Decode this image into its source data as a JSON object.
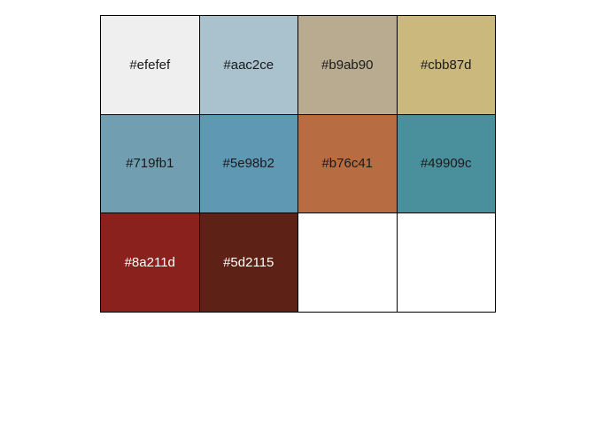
{
  "palette": {
    "swatches": [
      {
        "label": "#efefef",
        "color": "#efefef",
        "text_color": "#1a1a1a"
      },
      {
        "label": "#aac2ce",
        "color": "#aac2ce",
        "text_color": "#1a1a1a"
      },
      {
        "label": "#b9ab90",
        "color": "#b9ab90",
        "text_color": "#1a1a1a"
      },
      {
        "label": "#cbb87d",
        "color": "#cbb87d",
        "text_color": "#1a1a1a"
      },
      {
        "label": "#719fb1",
        "color": "#719fb1",
        "text_color": "#1a1a1a"
      },
      {
        "label": "#5e98b2",
        "color": "#5e98b2",
        "text_color": "#1a1a1a"
      },
      {
        "label": "#b76c41",
        "color": "#b76c41",
        "text_color": "#1a1a1a"
      },
      {
        "label": "#49909c",
        "color": "#49909c",
        "text_color": "#1a1a1a"
      },
      {
        "label": "#8a211d",
        "color": "#8a211d",
        "text_color": "#ffffff"
      },
      {
        "label": "#5d2115",
        "color": "#5d2115",
        "text_color": "#ffffff"
      },
      {
        "label": "",
        "color": "#ffffff",
        "text_color": "#1a1a1a"
      },
      {
        "label": "",
        "color": "#ffffff",
        "text_color": "#1a1a1a"
      }
    ]
  }
}
